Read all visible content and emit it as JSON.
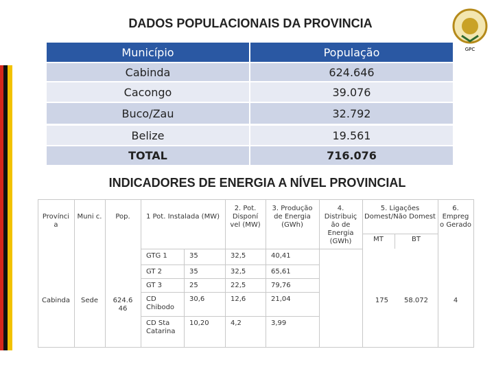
{
  "title": "DADOS POPULACIONAIS DA PROVINCIA",
  "logo_text": "GPC",
  "population_table": {
    "header": [
      "Município",
      "População"
    ],
    "rows": [
      [
        "Cabinda",
        "624.646"
      ],
      [
        "Cacongo",
        "39.076"
      ],
      [
        "Buco/Zau",
        "32.792"
      ],
      [
        "Belize",
        "19.561"
      ],
      [
        "TOTAL",
        "716.076"
      ]
    ]
  },
  "subtitle": "INDICADORES DE ENERGIA A NÍVEL PROVINCIAL",
  "energy_table": {
    "header": [
      "Provínci a",
      "Muni c.",
      "Pop.",
      "1 Pot. Instalada (MW)",
      "2. Pot. Disponí vel (MW)",
      "3. Produção de Energia (GWh)",
      "4. Distribuiç ão de Energia (GWh)",
      "5. Ligações Domest/Não Domest",
      "6. Empreg o Gerado"
    ],
    "subheader": [
      "MT",
      "BT"
    ],
    "location": [
      "Cabinda",
      "Sede",
      "624.6 46"
    ],
    "rows": [
      [
        "GTG 1",
        "35",
        "32,5",
        "40,41"
      ],
      [
        "GT 2",
        "35",
        "32,5",
        "65,61"
      ],
      [
        "GT 3",
        "25",
        "22,5",
        "79,76"
      ],
      [
        "CD Chibodo",
        "30,6",
        "12,6",
        "21,04"
      ],
      [
        "CD Sta Catarina",
        "10,20",
        "4,2",
        "3,99"
      ]
    ],
    "connections": [
      "175",
      "58.072"
    ],
    "jobs": "4"
  }
}
